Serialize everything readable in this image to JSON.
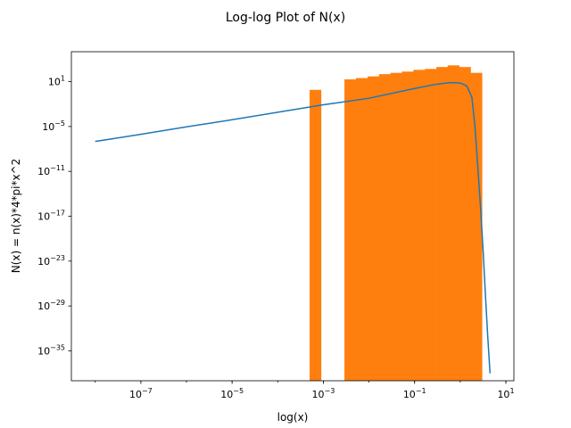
{
  "chart_data": {
    "type": "bar",
    "title": "Log-log Plot of N(x)",
    "xlabel": "log(x)",
    "ylabel": "N(x) = n(x)*4*pi*x^2",
    "xscale": "log",
    "yscale": "log",
    "xlim": [
      3e-09,
      15
    ],
    "ylim": [
      1e-39,
      100000.0
    ],
    "x_ticks": [
      {
        "value": 1e-07,
        "base": "10",
        "exp": "−7"
      },
      {
        "value": 1e-05,
        "base": "10",
        "exp": "−5"
      },
      {
        "value": 0.001,
        "base": "10",
        "exp": "−3"
      },
      {
        "value": 0.1,
        "base": "10",
        "exp": "−1"
      },
      {
        "value": 10,
        "base": "10",
        "exp": "1"
      }
    ],
    "y_ticks": [
      {
        "value": 10.0,
        "base": "10",
        "exp": "1"
      },
      {
        "value": 1e-05,
        "base": "10",
        "exp": "−5"
      },
      {
        "value": 1e-11,
        "base": "10",
        "exp": "−11"
      },
      {
        "value": 1e-17,
        "base": "10",
        "exp": "−17"
      },
      {
        "value": 1e-23,
        "base": "10",
        "exp": "−23"
      },
      {
        "value": 1e-29,
        "base": "10",
        "exp": "−29"
      },
      {
        "value": 1e-35,
        "base": "10",
        "exp": "−35"
      }
    ],
    "histogram": {
      "color": "#ff7f0e",
      "bins": [
        {
          "x0": 0.0005,
          "x1": 0.00089,
          "y": 0.8
        },
        {
          "x0": 0.0029,
          "x1": 0.0052,
          "y": 20
        },
        {
          "x0": 0.0052,
          "x1": 0.0093,
          "y": 30
        },
        {
          "x0": 0.0093,
          "x1": 0.0166,
          "y": 50
        },
        {
          "x0": 0.0166,
          "x1": 0.0296,
          "y": 100
        },
        {
          "x0": 0.0296,
          "x1": 0.0528,
          "y": 150
        },
        {
          "x0": 0.0528,
          "x1": 0.094,
          "y": 220
        },
        {
          "x0": 0.094,
          "x1": 0.168,
          "y": 380
        },
        {
          "x0": 0.168,
          "x1": 0.3,
          "y": 500
        },
        {
          "x0": 0.3,
          "x1": 0.53,
          "y": 900
        },
        {
          "x0": 0.53,
          "x1": 0.95,
          "y": 1500
        },
        {
          "x0": 0.95,
          "x1": 1.69,
          "y": 900
        },
        {
          "x0": 1.69,
          "x1": 3.0,
          "y": 150
        }
      ]
    },
    "line": {
      "color": "#1f77b4",
      "points": [
        [
          1e-08,
          1e-07
        ],
        [
          1e-07,
          9e-07
        ],
        [
          1e-06,
          9e-06
        ],
        [
          1e-05,
          8e-05
        ],
        [
          0.0001,
          0.0008
        ],
        [
          0.001,
          0.008
        ],
        [
          0.01,
          0.06
        ],
        [
          0.05,
          0.5
        ],
        [
          0.1,
          1.2
        ],
        [
          0.3,
          4.5
        ],
        [
          0.6,
          7.5
        ],
        [
          1.0,
          6.5
        ],
        [
          1.4,
          2.5
        ],
        [
          1.8,
          0.08
        ],
        [
          2.1,
          1e-05
        ],
        [
          2.4,
          1e-10
        ],
        [
          2.8,
          1e-16
        ],
        [
          3.2,
          1e-22
        ],
        [
          3.6,
          1e-28
        ],
        [
          4.0,
          1e-33
        ],
        [
          4.5,
          1e-38
        ]
      ]
    }
  }
}
